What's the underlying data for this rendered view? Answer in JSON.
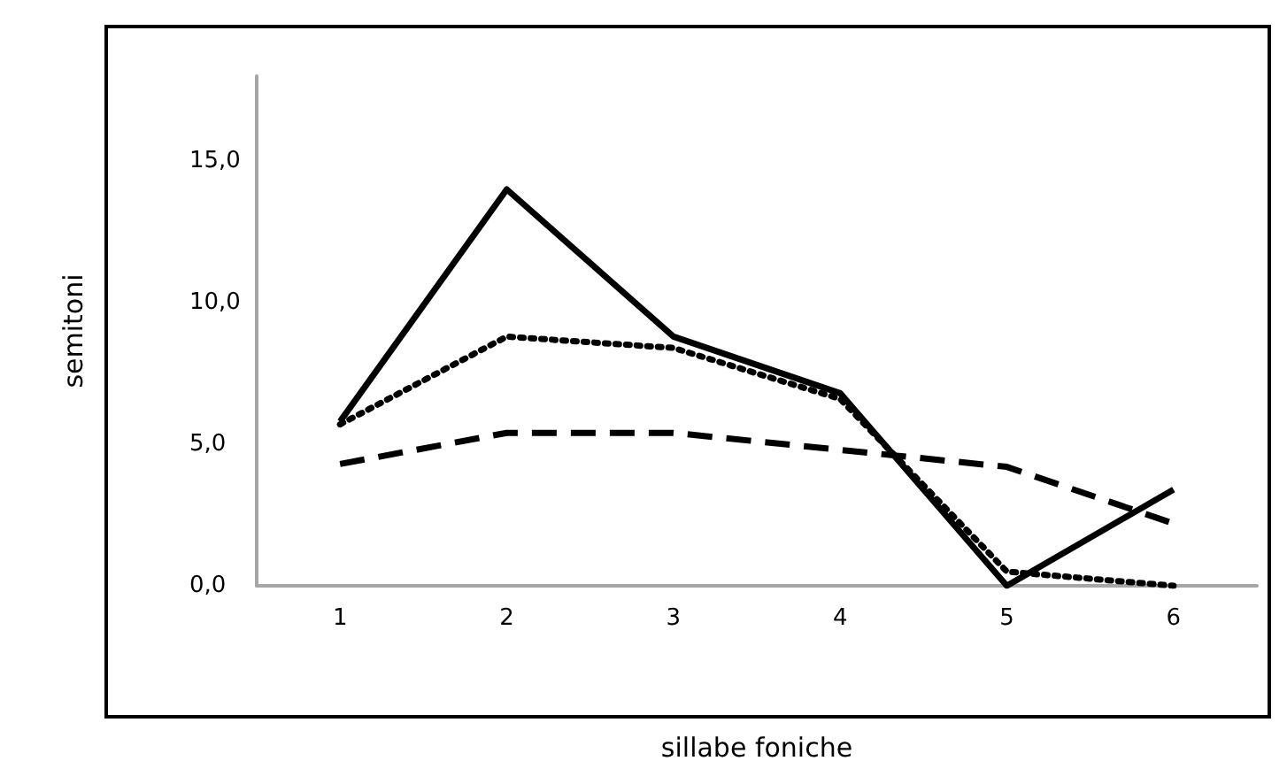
{
  "chart_data": {
    "type": "line",
    "xlabel": "sillabe foniche",
    "ylabel": "semitoni",
    "categories": [
      "1",
      "2",
      "3",
      "4",
      "5",
      "6"
    ],
    "series": [
      {
        "color": "#000000",
        "line_style": "solid",
        "values": [
          5.8,
          14.0,
          8.8,
          6.8,
          0.0,
          3.4
        ]
      },
      {
        "color": "#000000",
        "line_style": "dotted",
        "values": [
          5.7,
          8.8,
          8.4,
          6.6,
          0.5,
          0.0
        ]
      },
      {
        "color": "#000000",
        "line_style": "dashed",
        "values": [
          4.3,
          5.4,
          5.4,
          4.8,
          4.2,
          2.2
        ]
      }
    ],
    "ylim": [
      0,
      18
    ],
    "yticks": [
      {
        "value": 0,
        "label": "0,0"
      },
      {
        "value": 5,
        "label": "5,0"
      },
      {
        "value": 10,
        "label": "10,0"
      },
      {
        "value": 15,
        "label": "15,0"
      }
    ],
    "grid": false,
    "marker": "none"
  }
}
